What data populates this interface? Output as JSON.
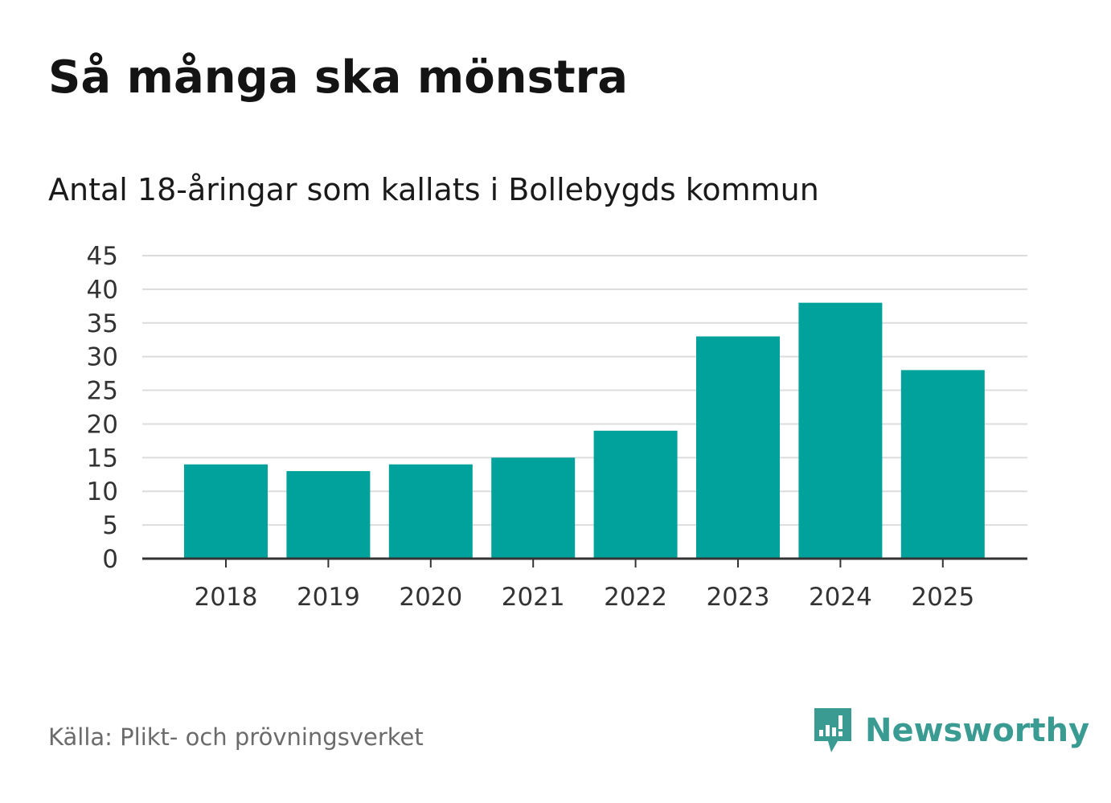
{
  "title": "Så många ska mönstra",
  "subtitle": "Antal 18-åringar som kallats i Bollebygds kommun",
  "source": "Källa: Plikt- och prövningsverket",
  "brand": {
    "name": "Newsworthy",
    "logo_icon": "newsworthy-bar-chart-icon",
    "color": "#3a9b92"
  },
  "colors": {
    "bar": "#00a29b",
    "grid": "#dcdcdc",
    "axis": "#333333"
  },
  "chart_data": {
    "type": "bar",
    "title": "Så många ska mönstra",
    "subtitle": "Antal 18-åringar som kallats i Bollebygds kommun",
    "xlabel": "",
    "ylabel": "",
    "categories": [
      "2018",
      "2019",
      "2020",
      "2021",
      "2022",
      "2023",
      "2024",
      "2025"
    ],
    "values": [
      14,
      13,
      14,
      15,
      19,
      33,
      38,
      28
    ],
    "ylim": [
      0,
      45
    ],
    "yticks": [
      0,
      5,
      10,
      15,
      20,
      25,
      30,
      35,
      40,
      45
    ],
    "grid": true,
    "legend": "none"
  }
}
